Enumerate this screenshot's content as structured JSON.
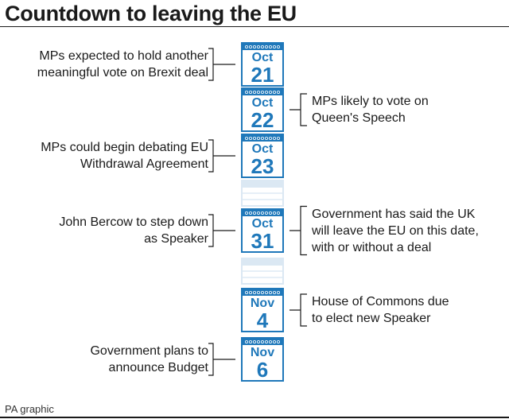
{
  "title": "Countdown to leaving the EU",
  "credit": "PA graphic",
  "colors": {
    "accent": "#1f78ba",
    "ghost": "#dbe8f3",
    "text": "#1a1a1a"
  },
  "events": [
    {
      "month": "Oct",
      "day": "21",
      "left_lines": [
        "MPs expected to hold another",
        "meaningful vote on Brexit deal"
      ],
      "right_lines": []
    },
    {
      "month": "Oct",
      "day": "22",
      "left_lines": [],
      "right_lines": [
        "MPs likely to vote on",
        "Queen's Speech"
      ]
    },
    {
      "month": "Oct",
      "day": "23",
      "left_lines": [
        "MPs could begin debating EU",
        "Withdrawal Agreement"
      ],
      "right_lines": []
    },
    {
      "month": "Oct",
      "day": "31",
      "left_lines": [
        "John Bercow to step down",
        "as Speaker"
      ],
      "right_lines": [
        "Government has said the UK",
        "will leave the EU on this date,",
        "with or without a deal"
      ]
    },
    {
      "month": "Nov",
      "day": "4",
      "left_lines": [],
      "right_lines": [
        "House of Commons due",
        "to elect new Speaker"
      ]
    },
    {
      "month": "Nov",
      "day": "6",
      "left_lines": [
        "Government plans to",
        "announce Budget"
      ],
      "right_lines": []
    }
  ]
}
